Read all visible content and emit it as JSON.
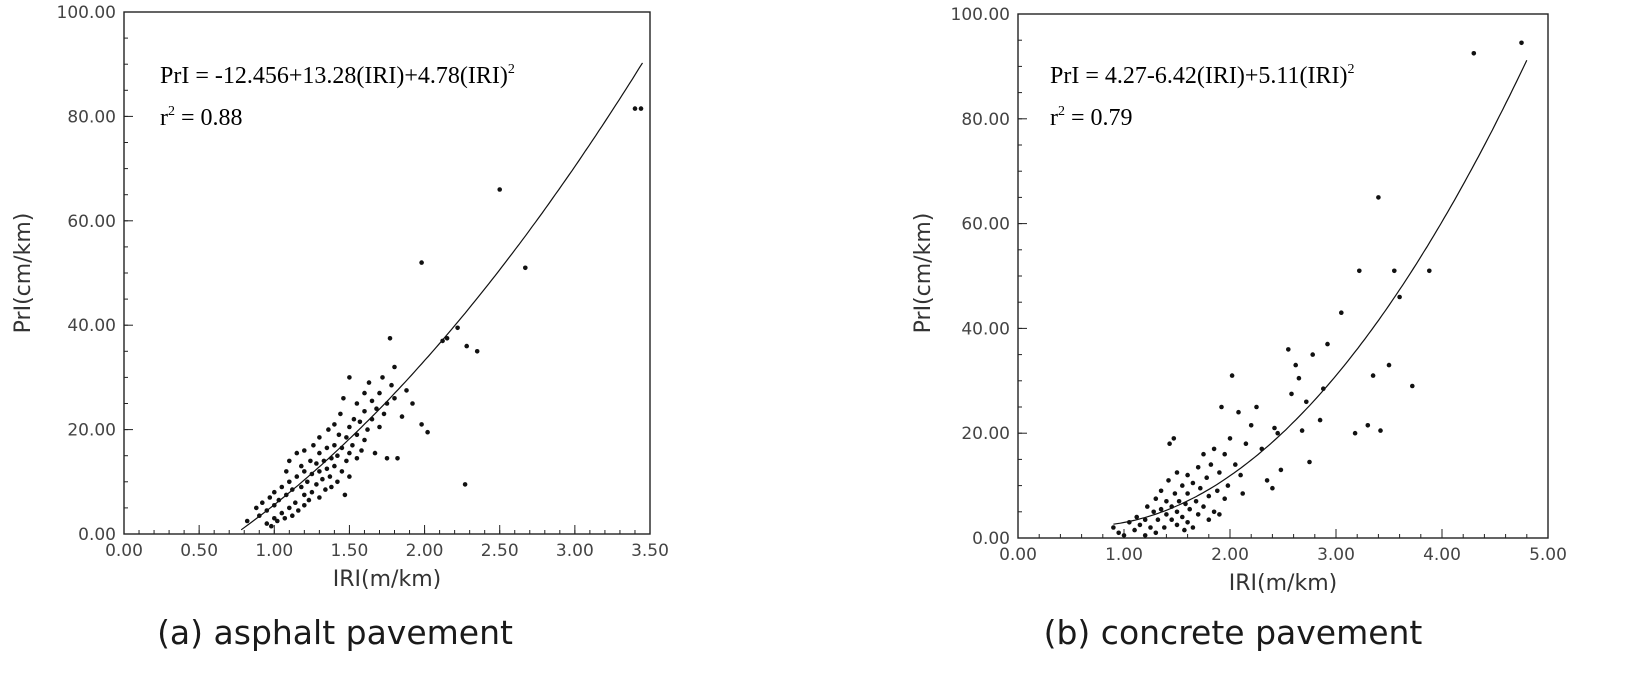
{
  "chart_data": [
    {
      "type": "scatter",
      "caption": "(a) asphalt pavement",
      "xlabel": "IRI(m/km)",
      "ylabel": "PrI(cm/km)",
      "xlim": [
        0,
        3.5
      ],
      "ylim": [
        0,
        100
      ],
      "x_ticks": [
        "0.00",
        "0.50",
        "1.00",
        "1.50",
        "2.00",
        "2.50",
        "3.00",
        "3.50"
      ],
      "y_ticks": [
        "0.00",
        "20.00",
        "40.00",
        "60.00",
        "80.00",
        "100.00"
      ],
      "equation": {
        "line1_main": "PrI = -12.456+13.28(IRI)+4.78(IRI)",
        "line1_sup": "2",
        "line2_main": "r",
        "line2_sup": "2",
        "line2_rest": " = 0.88"
      },
      "fit": {
        "a": -12.456,
        "b": 13.28,
        "c": 4.78,
        "x_from": 0.78,
        "x_to": 3.45
      },
      "points": [
        [
          0.82,
          2.5
        ],
        [
          0.88,
          5.0
        ],
        [
          0.9,
          3.5
        ],
        [
          0.92,
          6.0
        ],
        [
          0.95,
          2.0
        ],
        [
          0.95,
          4.5
        ],
        [
          0.97,
          7.0
        ],
        [
          0.98,
          1.5
        ],
        [
          1.0,
          3.0
        ],
        [
          1.0,
          5.5
        ],
        [
          1.0,
          8.0
        ],
        [
          1.02,
          2.5
        ],
        [
          1.03,
          6.5
        ],
        [
          1.05,
          4.0
        ],
        [
          1.05,
          9.0
        ],
        [
          1.07,
          3.0
        ],
        [
          1.08,
          7.5
        ],
        [
          1.08,
          12.0
        ],
        [
          1.1,
          5.0
        ],
        [
          1.1,
          10.0
        ],
        [
          1.1,
          14.0
        ],
        [
          1.12,
          3.5
        ],
        [
          1.12,
          8.5
        ],
        [
          1.14,
          6.0
        ],
        [
          1.15,
          11.0
        ],
        [
          1.15,
          15.5
        ],
        [
          1.16,
          4.5
        ],
        [
          1.18,
          9.0
        ],
        [
          1.18,
          13.0
        ],
        [
          1.2,
          5.5
        ],
        [
          1.2,
          7.5
        ],
        [
          1.2,
          12.0
        ],
        [
          1.2,
          16.0
        ],
        [
          1.22,
          10.0
        ],
        [
          1.23,
          6.5
        ],
        [
          1.24,
          14.0
        ],
        [
          1.25,
          8.0
        ],
        [
          1.25,
          11.5
        ],
        [
          1.26,
          17.0
        ],
        [
          1.28,
          9.5
        ],
        [
          1.28,
          13.5
        ],
        [
          1.3,
          7.0
        ],
        [
          1.3,
          12.0
        ],
        [
          1.3,
          15.5
        ],
        [
          1.3,
          18.5
        ],
        [
          1.32,
          10.5
        ],
        [
          1.33,
          14.0
        ],
        [
          1.34,
          8.5
        ],
        [
          1.35,
          12.5
        ],
        [
          1.35,
          16.5
        ],
        [
          1.36,
          20.0
        ],
        [
          1.37,
          11.0
        ],
        [
          1.38,
          14.5
        ],
        [
          1.38,
          9.0
        ],
        [
          1.4,
          13.0
        ],
        [
          1.4,
          17.0
        ],
        [
          1.4,
          21.0
        ],
        [
          1.42,
          10.0
        ],
        [
          1.42,
          15.0
        ],
        [
          1.43,
          19.0
        ],
        [
          1.44,
          23.0
        ],
        [
          1.45,
          12.0
        ],
        [
          1.45,
          16.5
        ],
        [
          1.46,
          26.0
        ],
        [
          1.47,
          7.5
        ],
        [
          1.48,
          14.0
        ],
        [
          1.48,
          18.5
        ],
        [
          1.5,
          11.0
        ],
        [
          1.5,
          15.5
        ],
        [
          1.5,
          20.5
        ],
        [
          1.5,
          30.0
        ],
        [
          1.52,
          17.0
        ],
        [
          1.53,
          22.0
        ],
        [
          1.55,
          14.5
        ],
        [
          1.55,
          19.0
        ],
        [
          1.55,
          25.0
        ],
        [
          1.57,
          21.5
        ],
        [
          1.58,
          16.0
        ],
        [
          1.6,
          18.0
        ],
        [
          1.6,
          23.5
        ],
        [
          1.6,
          27.0
        ],
        [
          1.62,
          20.0
        ],
        [
          1.63,
          29.0
        ],
        [
          1.65,
          22.0
        ],
        [
          1.65,
          25.5
        ],
        [
          1.67,
          15.5
        ],
        [
          1.68,
          24.0
        ],
        [
          1.7,
          27.0
        ],
        [
          1.7,
          20.5
        ],
        [
          1.72,
          30.0
        ],
        [
          1.73,
          23.0
        ],
        [
          1.75,
          25.0
        ],
        [
          1.75,
          14.5
        ],
        [
          1.77,
          37.5
        ],
        [
          1.78,
          28.5
        ],
        [
          1.8,
          26.0
        ],
        [
          1.8,
          32.0
        ],
        [
          1.82,
          14.5
        ],
        [
          1.85,
          22.5
        ],
        [
          1.88,
          27.5
        ],
        [
          1.92,
          25.0
        ],
        [
          1.98,
          52.0
        ],
        [
          1.98,
          21.0
        ],
        [
          2.02,
          19.5
        ],
        [
          2.12,
          37.0
        ],
        [
          2.15,
          37.5
        ],
        [
          2.22,
          39.5
        ],
        [
          2.28,
          36.0
        ],
        [
          2.35,
          35.0
        ],
        [
          2.27,
          9.5
        ],
        [
          2.5,
          66.0
        ],
        [
          2.67,
          51.0
        ],
        [
          3.4,
          81.5
        ],
        [
          3.44,
          81.5
        ]
      ]
    },
    {
      "type": "scatter",
      "caption": "(b) concrete pavement",
      "xlabel": "IRI(m/km)",
      "ylabel": "PrI(cm/km)",
      "xlim": [
        0,
        5
      ],
      "ylim": [
        0,
        100
      ],
      "x_ticks": [
        "0.00",
        "1.00",
        "2.00",
        "3.00",
        "4.00",
        "5.00"
      ],
      "y_ticks": [
        "0.00",
        "20.00",
        "40.00",
        "60.00",
        "80.00",
        "100.00"
      ],
      "equation": {
        "line1_main": "PrI = 4.27-6.42(IRI)+5.11(IRI)",
        "line1_sup": "2",
        "line2_main": "r",
        "line2_sup": "2",
        "line2_rest": " = 0.79"
      },
      "fit": {
        "a": 4.27,
        "b": -6.42,
        "c": 5.11,
        "x_from": 0.9,
        "x_to": 4.8
      },
      "points": [
        [
          0.9,
          2.0
        ],
        [
          0.95,
          1.0
        ],
        [
          1.0,
          0.5
        ],
        [
          1.05,
          3.0
        ],
        [
          1.1,
          1.5
        ],
        [
          1.12,
          4.0
        ],
        [
          1.15,
          2.5
        ],
        [
          1.2,
          0.5
        ],
        [
          1.2,
          3.5
        ],
        [
          1.22,
          6.0
        ],
        [
          1.25,
          2.0
        ],
        [
          1.28,
          5.0
        ],
        [
          1.3,
          1.0
        ],
        [
          1.3,
          7.5
        ],
        [
          1.32,
          3.5
        ],
        [
          1.35,
          9.0
        ],
        [
          1.35,
          5.5
        ],
        [
          1.38,
          2.0
        ],
        [
          1.4,
          4.5
        ],
        [
          1.4,
          7.0
        ],
        [
          1.42,
          11.0
        ],
        [
          1.43,
          18.0
        ],
        [
          1.45,
          3.5
        ],
        [
          1.45,
          6.0
        ],
        [
          1.47,
          19.0
        ],
        [
          1.48,
          8.5
        ],
        [
          1.5,
          2.5
        ],
        [
          1.5,
          5.0
        ],
        [
          1.5,
          12.5
        ],
        [
          1.52,
          7.0
        ],
        [
          1.55,
          4.0
        ],
        [
          1.55,
          10.0
        ],
        [
          1.57,
          1.5
        ],
        [
          1.58,
          6.5
        ],
        [
          1.6,
          3.0
        ],
        [
          1.6,
          8.5
        ],
        [
          1.6,
          12.0
        ],
        [
          1.62,
          5.5
        ],
        [
          1.65,
          10.5
        ],
        [
          1.65,
          2.0
        ],
        [
          1.68,
          7.0
        ],
        [
          1.7,
          13.5
        ],
        [
          1.7,
          4.5
        ],
        [
          1.72,
          9.5
        ],
        [
          1.75,
          16.0
        ],
        [
          1.75,
          6.0
        ],
        [
          1.78,
          11.5
        ],
        [
          1.8,
          3.5
        ],
        [
          1.8,
          8.0
        ],
        [
          1.82,
          14.0
        ],
        [
          1.85,
          5.0
        ],
        [
          1.85,
          17.0
        ],
        [
          1.88,
          9.0
        ],
        [
          1.9,
          12.5
        ],
        [
          1.9,
          4.5
        ],
        [
          1.92,
          25.0
        ],
        [
          1.95,
          7.5
        ],
        [
          1.95,
          16.0
        ],
        [
          1.98,
          10.0
        ],
        [
          2.0,
          19.0
        ],
        [
          2.02,
          31.0
        ],
        [
          2.05,
          14.0
        ],
        [
          2.08,
          24.0
        ],
        [
          2.1,
          12.0
        ],
        [
          2.12,
          8.5
        ],
        [
          2.15,
          18.0
        ],
        [
          2.2,
          21.5
        ],
        [
          2.25,
          25.0
        ],
        [
          2.3,
          17.0
        ],
        [
          2.35,
          11.0
        ],
        [
          2.4,
          9.5
        ],
        [
          2.42,
          21.0
        ],
        [
          2.45,
          20.0
        ],
        [
          2.48,
          13.0
        ],
        [
          2.55,
          36.0
        ],
        [
          2.58,
          27.5
        ],
        [
          2.62,
          33.0
        ],
        [
          2.65,
          30.5
        ],
        [
          2.68,
          20.5
        ],
        [
          2.72,
          26.0
        ],
        [
          2.75,
          14.5
        ],
        [
          2.78,
          35.0
        ],
        [
          2.85,
          22.5
        ],
        [
          2.88,
          28.5
        ],
        [
          2.92,
          37.0
        ],
        [
          3.05,
          43.0
        ],
        [
          3.18,
          20.0
        ],
        [
          3.22,
          51.0
        ],
        [
          3.3,
          21.5
        ],
        [
          3.35,
          31.0
        ],
        [
          3.4,
          65.0
        ],
        [
          3.42,
          20.5
        ],
        [
          3.5,
          33.0
        ],
        [
          3.55,
          51.0
        ],
        [
          3.6,
          46.0
        ],
        [
          3.72,
          29.0
        ],
        [
          3.88,
          51.0
        ],
        [
          4.3,
          92.5
        ],
        [
          4.75,
          94.5
        ]
      ]
    }
  ]
}
